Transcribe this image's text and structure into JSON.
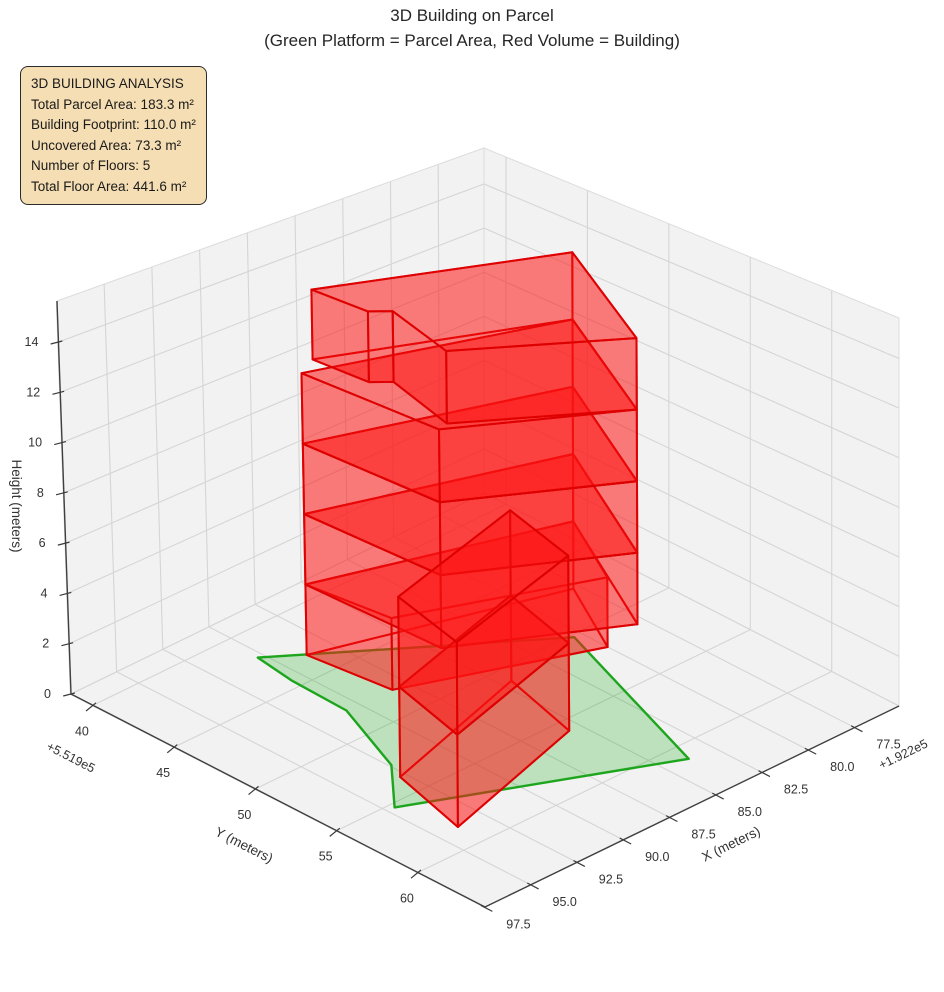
{
  "title": {
    "line1": "3D Building on Parcel",
    "line2": "(Green Platform = Parcel Area, Red Volume = Building)"
  },
  "analysis_box": {
    "line1": "3D BUILDING ANALYSIS",
    "line2": "Total Parcel Area: 183.3 m²",
    "line3": "Building Footprint: 110.0 m²",
    "line4": "Uncovered Area: 73.3 m²",
    "line5": "Number of Floors: 5",
    "line6": "Total Floor Area: 441.6 m²",
    "bg_color": "#f5deb3",
    "border_color": "#2b2b2b"
  },
  "chart_data": {
    "type": "3d-building-massing",
    "title": "3D Building on Parcel",
    "subtitle": "(Green Platform = Parcel Area, Red Volume = Building)",
    "legend_note": "Green Platform = Parcel Area, Red Volume = Building",
    "stats": {
      "total_parcel_area_m2": 183.3,
      "building_footprint_m2": 110.0,
      "uncovered_area_m2": 73.3,
      "number_of_floors": 5,
      "total_floor_area_m2": 441.6
    },
    "axes": {
      "x": {
        "label": "X (meters)",
        "offset_text": "+1.922e5",
        "ticks": [
          77.5,
          80.0,
          82.5,
          85.0,
          87.5,
          90.0,
          92.5,
          95.0,
          97.5
        ],
        "lim": [
          75.1,
          97.47
        ]
      },
      "y": {
        "label": "Y (meters)",
        "offset_text": "+5.519e5",
        "ticks": [
          40,
          45,
          50,
          55,
          60
        ],
        "lim": [
          38.65,
          64.13
        ]
      },
      "z": {
        "label": "Height (meters)",
        "ticks": [
          0,
          2,
          4,
          6,
          8,
          10,
          12,
          14
        ],
        "lim": [
          0,
          15.63
        ]
      }
    },
    "parcel": {
      "fill": "rgba(0,158,0,0.22)",
      "edge": "#1da51d",
      "vertices_xy": [
        [
          90.3,
          42.0
        ],
        [
          80.4,
          50.2
        ],
        [
          83.8,
          61.1
        ],
        [
          94.6,
          55.3
        ],
        [
          92.4,
          52.6
        ],
        [
          90.7,
          47.9
        ],
        [
          90.6,
          44.4
        ]
      ]
    },
    "building": {
      "fill": "rgba(255,20,20,0.33)",
      "edge": "#dd0000",
      "floor_height_m": 2.88,
      "blocks": [
        {
          "name": "tower-floor-1",
          "poly": [
            [
              88.8,
              43.3
            ],
            [
              77.8,
              47.2
            ],
            [
              80.0,
              51.8
            ],
            [
              88.3,
              48.0
            ]
          ],
          "z": [
            0,
            2.88
          ]
        },
        {
          "name": "tower-floor-2",
          "poly": [
            [
              88.8,
              43.3
            ],
            [
              77.8,
              47.2
            ],
            [
              81.8,
              55.7
            ],
            [
              88.6,
              51.4
            ]
          ],
          "z": [
            2.88,
            5.76
          ]
        },
        {
          "name": "tower-floor-3",
          "poly": [
            [
              88.8,
              43.3
            ],
            [
              77.8,
              47.2
            ],
            [
              81.8,
              55.7
            ],
            [
              88.6,
              51.4
            ]
          ],
          "z": [
            5.76,
            8.64
          ]
        },
        {
          "name": "tower-floor-4",
          "poly": [
            [
              88.8,
              43.3
            ],
            [
              77.8,
              47.2
            ],
            [
              81.8,
              55.7
            ],
            [
              88.6,
              51.4
            ]
          ],
          "z": [
            8.64,
            11.52
          ]
        },
        {
          "name": "tower-floor-5",
          "poly": [
            [
              87.6,
              42.6
            ],
            [
              77.8,
              47.2
            ],
            [
              81.8,
              55.7
            ],
            [
              88.0,
              51.2
            ],
            [
              86.8,
              46.6
            ],
            [
              87.5,
              45.9
            ]
          ],
          "z": [
            11.52,
            14.4
          ]
        },
        {
          "name": "annex-floor-1",
          "poly": [
            [
              84.5,
              51.0
            ],
            [
              92.8,
              53.6
            ],
            [
              93.9,
              58.4
            ],
            [
              85.6,
              55.8
            ]
          ],
          "z": [
            0,
            3.45
          ]
        },
        {
          "name": "annex-floor-2",
          "poly": [
            [
              84.5,
              51.0
            ],
            [
              92.8,
              53.6
            ],
            [
              93.9,
              58.4
            ],
            [
              85.6,
              55.8
            ]
          ],
          "z": [
            3.45,
            6.9
          ]
        }
      ]
    },
    "style": {
      "pane_color": "#f2f2f2",
      "grid_color": "#d5d5d5",
      "spine_color": "#404040",
      "tick_label_color": "#333333"
    }
  }
}
